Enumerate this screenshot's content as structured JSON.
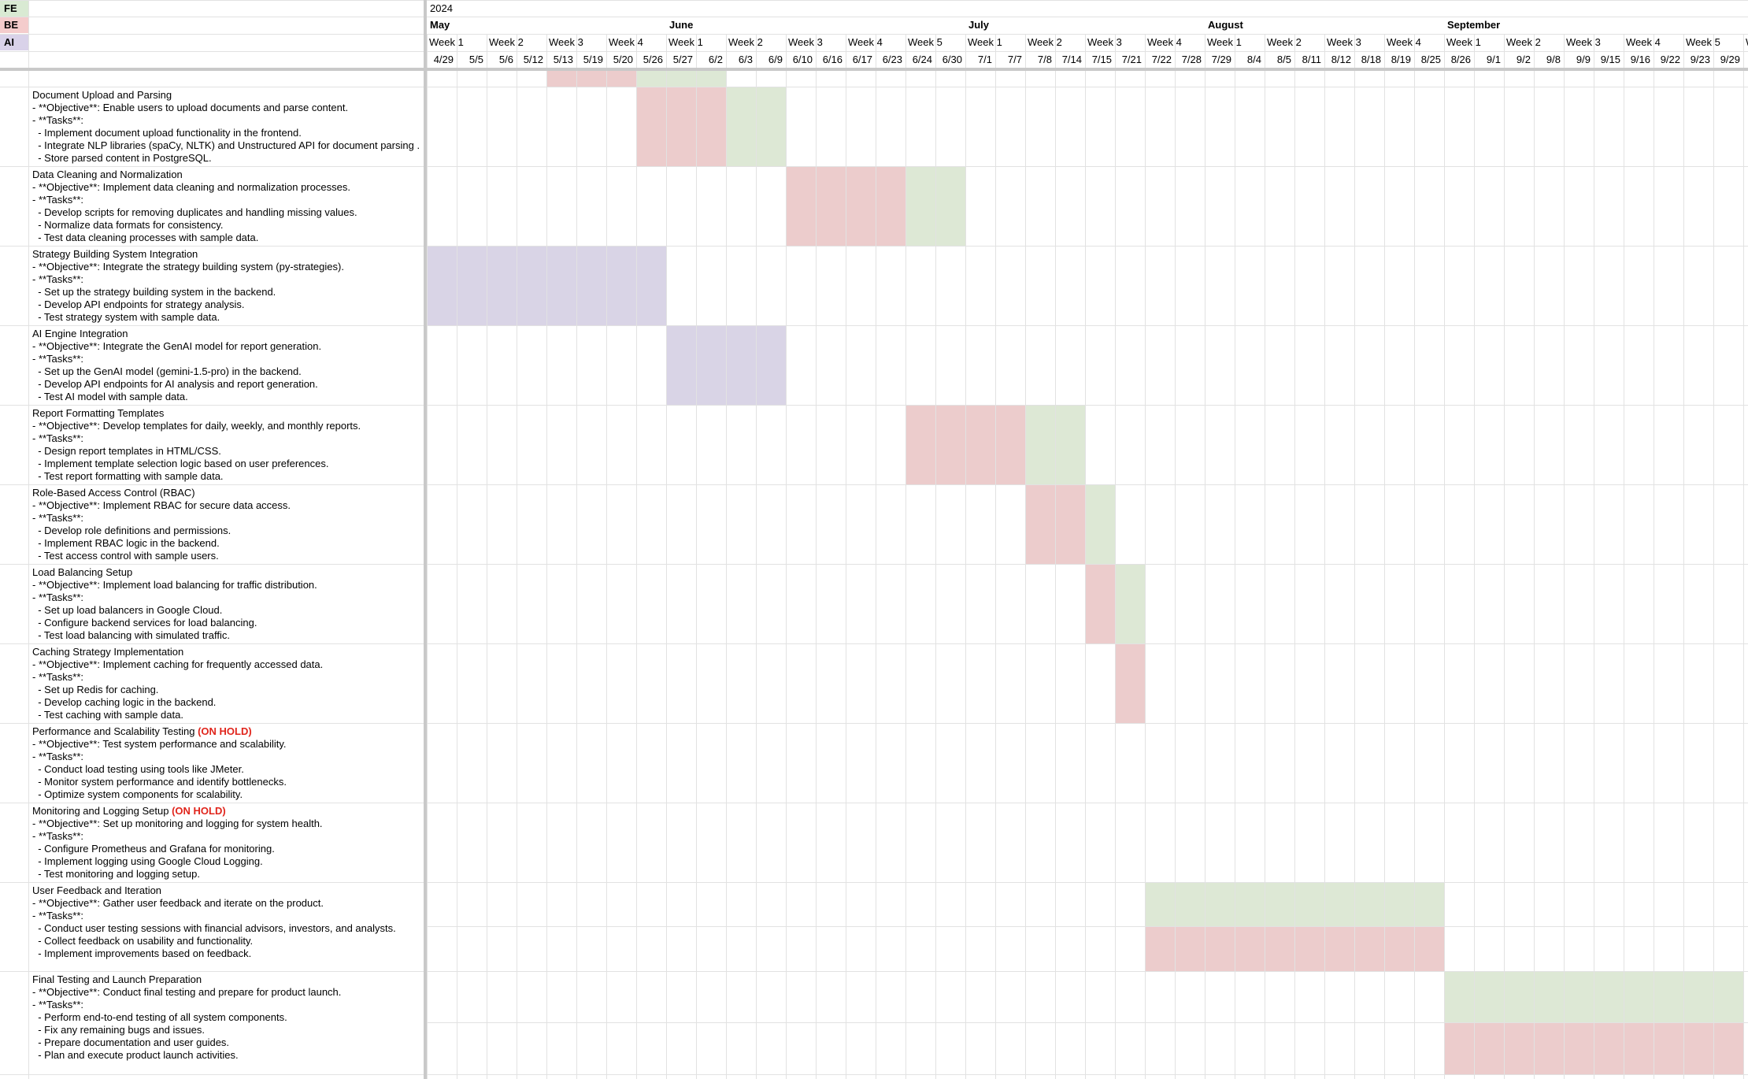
{
  "legend": [
    {
      "label": "FE",
      "color": "#d9ead3"
    },
    {
      "label": "BE",
      "color": "#f4cccc"
    },
    {
      "label": "AI",
      "color": "#d9d2e9"
    }
  ],
  "colors": {
    "FE": "#dde8d5",
    "BE": "#eccccc",
    "AI": "#d9d4e6",
    "grid": "#e2e2e2",
    "frozen": "#c9c9c9",
    "on_hold": "#e0251c"
  },
  "header": {
    "year": "2024",
    "months": [
      {
        "label": "May",
        "col": 0
      },
      {
        "label": "June",
        "col": 8
      },
      {
        "label": "July",
        "col": 18
      },
      {
        "label": "August",
        "col": 26
      },
      {
        "label": "September",
        "col": 34
      }
    ],
    "weeks": [
      "Week 1",
      "",
      "Week 2",
      "",
      "Week 3",
      "",
      "Week 4",
      "",
      "Week 1",
      "",
      "Week 2",
      "",
      "Week 3",
      "",
      "Week 4",
      "",
      "Week 5",
      "",
      "Week 1",
      "",
      "Week 2",
      "",
      "Week 3",
      "",
      "Week 4",
      "",
      "Week 1",
      "",
      "Week 2",
      "",
      "Week 3",
      "",
      "Week 4",
      "",
      "Week 1",
      "",
      "Week 2",
      "",
      "Week 3",
      "",
      "Week 4",
      "",
      "Week 5",
      "",
      "W"
    ],
    "dates": [
      "4/29",
      "5/5",
      "5/6",
      "5/12",
      "5/13",
      "5/19",
      "5/20",
      "5/26",
      "5/27",
      "6/2",
      "6/3",
      "6/9",
      "6/10",
      "6/16",
      "6/17",
      "6/23",
      "6/24",
      "6/30",
      "7/1",
      "7/7",
      "7/8",
      "7/14",
      "7/15",
      "7/21",
      "7/22",
      "7/28",
      "7/29",
      "8/4",
      "8/5",
      "8/11",
      "8/12",
      "8/18",
      "8/19",
      "8/25",
      "8/26",
      "9/1",
      "9/2",
      "9/8",
      "9/9",
      "9/15",
      "9/16",
      "9/22",
      "9/23",
      "9/29"
    ]
  },
  "tasks": [
    {
      "title": "Document Upload and Parsing",
      "on_hold": "",
      "lines": [
        "- **Objective**: Enable users to upload documents and parse content.",
        "- **Tasks**:",
        "  - Implement document upload functionality in the frontend.",
        "  - Integrate NLP libraries (spaCy, NLTK) and Unstructured API for document parsing .",
        "  - Store parsed content in PostgreSQL."
      ],
      "bars": [
        {
          "team": "BE",
          "start": 7,
          "end": 10
        },
        {
          "team": "FE",
          "start": 10,
          "end": 12
        }
      ]
    },
    {
      "title": "Data Cleaning and Normalization",
      "on_hold": "",
      "lines": [
        "- **Objective**: Implement data cleaning and normalization processes.",
        "- **Tasks**:",
        "  - Develop scripts for removing duplicates and handling missing values.",
        "  - Normalize data formats for consistency.",
        "  - Test data cleaning processes with sample data."
      ],
      "bars": [
        {
          "team": "BE",
          "start": 12,
          "end": 16
        },
        {
          "team": "FE",
          "start": 16,
          "end": 18
        }
      ]
    },
    {
      "title": "Strategy Building System Integration",
      "on_hold": "",
      "lines": [
        "- **Objective**: Integrate the strategy building system (py-strategies).",
        "- **Tasks**:",
        "  - Set up the strategy building system in the backend.",
        "  - Develop API endpoints for strategy analysis.",
        "  - Test strategy system with sample data."
      ],
      "bars": [
        {
          "team": "AI",
          "start": 0,
          "end": 8
        }
      ]
    },
    {
      "title": "AI Engine Integration",
      "on_hold": "",
      "lines": [
        "- **Objective**: Integrate the GenAI model for report generation.",
        "- **Tasks**:",
        "  - Set up the GenAI model (gemini-1.5-pro) in the backend.",
        "  - Develop API endpoints for AI analysis and report generation.",
        "  - Test AI model with sample data."
      ],
      "bars": [
        {
          "team": "AI",
          "start": 8,
          "end": 12
        }
      ]
    },
    {
      "title": "Report Formatting Templates",
      "on_hold": "",
      "lines": [
        "- **Objective**: Develop templates for daily, weekly, and monthly reports.",
        "- **Tasks**:",
        "  - Design report templates in HTML/CSS.",
        "  - Implement template selection logic based on user preferences.",
        "  - Test report formatting with sample data."
      ],
      "bars": [
        {
          "team": "BE",
          "start": 16,
          "end": 20
        },
        {
          "team": "FE",
          "start": 20,
          "end": 22
        }
      ]
    },
    {
      "title": "Role-Based Access Control (RBAC)",
      "on_hold": "",
      "lines": [
        "- **Objective**: Implement RBAC for secure data access.",
        "- **Tasks**:",
        "  - Develop role definitions and permissions.",
        "  - Implement RBAC logic in the backend.",
        "  - Test access control with sample users."
      ],
      "bars": [
        {
          "team": "BE",
          "start": 20,
          "end": 22
        },
        {
          "team": "FE",
          "start": 22,
          "end": 23
        }
      ]
    },
    {
      "title": "Load Balancing Setup",
      "on_hold": "",
      "lines": [
        "- **Objective**: Implement load balancing for traffic distribution.",
        "- **Tasks**:",
        "  - Set up load balancers in Google Cloud.",
        "  - Configure backend services for load balancing.",
        "  - Test load balancing with simulated traffic."
      ],
      "bars": [
        {
          "team": "BE",
          "start": 22,
          "end": 23
        },
        {
          "team": "FE",
          "start": 23,
          "end": 24
        }
      ]
    },
    {
      "title": "Caching Strategy Implementation",
      "on_hold": "",
      "lines": [
        "- **Objective**: Implement caching for frequently accessed data.",
        "- **Tasks**:",
        "  - Set up Redis for caching.",
        "  - Develop caching logic in the backend.",
        "  - Test caching with sample data."
      ],
      "bars": [
        {
          "team": "BE",
          "start": 23,
          "end": 24
        }
      ]
    },
    {
      "title": "Performance and Scalability Testing",
      "on_hold": "(ON HOLD)",
      "lines": [
        "- **Objective**: Test system performance and scalability.",
        "- **Tasks**:",
        "  - Conduct load testing using tools like JMeter.",
        "  - Monitor system performance and identify bottlenecks.",
        "  - Optimize system components for scalability."
      ],
      "bars": []
    },
    {
      "title": "Monitoring and Logging Setup",
      "on_hold": "(ON HOLD)",
      "lines": [
        "- **Objective**: Set up monitoring and logging for system health.",
        "- **Tasks**:",
        "  - Configure Prometheus and Grafana for monitoring.",
        "  - Implement logging using Google Cloud Logging.",
        "  - Test monitoring and logging setup."
      ],
      "bars": []
    },
    {
      "title": "User Feedback and Iteration",
      "on_hold": "",
      "lines": [
        "- **Objective**: Gather user feedback and iterate on the product.",
        "- **Tasks**:",
        "  - Conduct user testing sessions with financial advisors, investors, and analysts.",
        "  - Collect feedback on usability and functionality.",
        "  - Implement improvements based on feedback."
      ],
      "bars": [
        {
          "team": "FE",
          "start": 24,
          "end": 34,
          "part": "top"
        },
        {
          "team": "BE",
          "start": 24,
          "end": 34,
          "part": "bottom"
        }
      ]
    },
    {
      "title": "Final Testing and Launch Preparation",
      "on_hold": "",
      "lines": [
        "- **Objective**: Conduct final testing and prepare for product launch.",
        "- **Tasks**:",
        "  - Perform end-to-end testing of all system components.",
        "  - Fix any remaining bugs and issues.",
        "  - Prepare documentation and user guides.",
        "  - Plan and execute product launch activities."
      ],
      "bars": [
        {
          "team": "FE",
          "start": 34,
          "end": 44,
          "part": "top"
        },
        {
          "team": "BE",
          "start": 34,
          "end": 44,
          "part": "bottom"
        }
      ]
    }
  ],
  "partial_row": {
    "bars": [
      {
        "team": "BE",
        "start": 4,
        "end": 7
      },
      {
        "team": "FE",
        "start": 7,
        "end": 10
      }
    ]
  }
}
